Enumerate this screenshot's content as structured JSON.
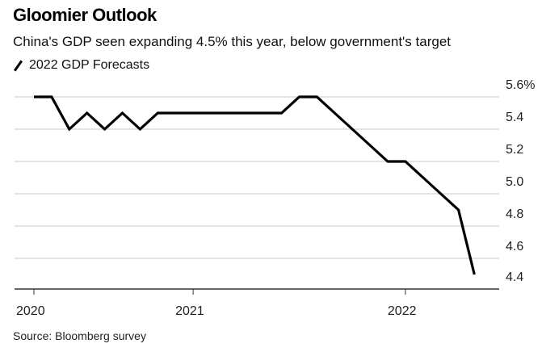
{
  "chart_data": {
    "type": "line",
    "title": "Gloomier Outlook",
    "subtitle": "China's GDP seen expanding 4.5% this year, below government's target",
    "legend": [
      {
        "name": "2022 GDP Forecasts",
        "color": "#000000"
      }
    ],
    "legend_position": "top-left",
    "source": "Source: Bloomberg survey",
    "xlabel": "",
    "ylabel": "",
    "ylim": [
      4.4,
      5.6
    ],
    "y_ticks": [
      "5.6%",
      "5.4",
      "5.2",
      "5.0",
      "4.8",
      "4.6",
      "4.4"
    ],
    "y_tick_values": [
      5.6,
      5.4,
      5.2,
      5.0,
      4.8,
      4.6,
      4.4
    ],
    "x_ticks": [
      "2020",
      "2021",
      "2022"
    ],
    "x_tick_positions": [
      0,
      9,
      21
    ],
    "grid": true,
    "y_axis_side": "right",
    "series": [
      {
        "name": "2022 GDP Forecasts",
        "color": "#000000",
        "x": [
          0,
          1,
          2,
          3,
          4,
          5,
          6,
          7,
          8,
          9,
          10,
          11,
          12,
          13,
          14,
          15,
          16,
          17,
          18,
          19,
          20,
          21,
          22,
          23,
          24,
          24.9
        ],
        "values": [
          5.6,
          5.6,
          5.4,
          5.5,
          5.4,
          5.5,
          5.4,
          5.5,
          5.5,
          5.5,
          5.5,
          5.5,
          5.5,
          5.5,
          5.5,
          5.6,
          5.6,
          5.5,
          5.4,
          5.3,
          5.2,
          5.2,
          5.1,
          5.0,
          4.9,
          4.5
        ]
      }
    ]
  }
}
